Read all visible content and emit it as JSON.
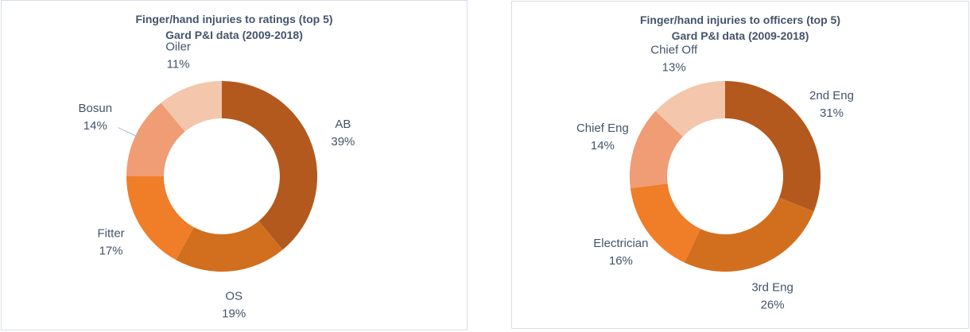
{
  "chart_data": [
    {
      "type": "pie",
      "subtype": "donut",
      "title": "Finger/hand injuries to ratings (top 5)",
      "subtitle": "Gard P&I data (2009-2018)",
      "categories": [
        "AB",
        "OS",
        "Fitter",
        "Bosun",
        "Oiler"
      ],
      "values": [
        39,
        19,
        17,
        14,
        11
      ],
      "unit": "%",
      "start_angle_deg": 0,
      "direction": "clockwise",
      "slice_colors": [
        "#b4591e",
        "#d26f1e",
        "#f07d28",
        "#f09c74",
        "#f4c6ac"
      ],
      "leader_line_categories": [
        "Bosun"
      ],
      "legend": "none",
      "label_position": "outside"
    },
    {
      "type": "pie",
      "subtype": "donut",
      "title": "Finger/hand injuries to officers (top 5)",
      "subtitle": "Gard P&I data (2009-2018)",
      "categories": [
        "2nd Eng",
        "3rd Eng",
        "Electrician",
        "Chief Eng",
        "Chief Off"
      ],
      "values": [
        31,
        26,
        16,
        14,
        13
      ],
      "unit": "%",
      "start_angle_deg": 0,
      "direction": "clockwise",
      "slice_colors": [
        "#b4591e",
        "#d26f1e",
        "#f07d28",
        "#f09c74",
        "#f4c6ac"
      ],
      "leader_line_categories": [],
      "legend": "none",
      "label_position": "outside"
    }
  ],
  "style": {
    "title_color": "#44546a",
    "label_color": "#44546a",
    "panel_border_color": "#d9dee6",
    "background": "#ffffff",
    "leader_line_color": "#a7b6c9"
  }
}
